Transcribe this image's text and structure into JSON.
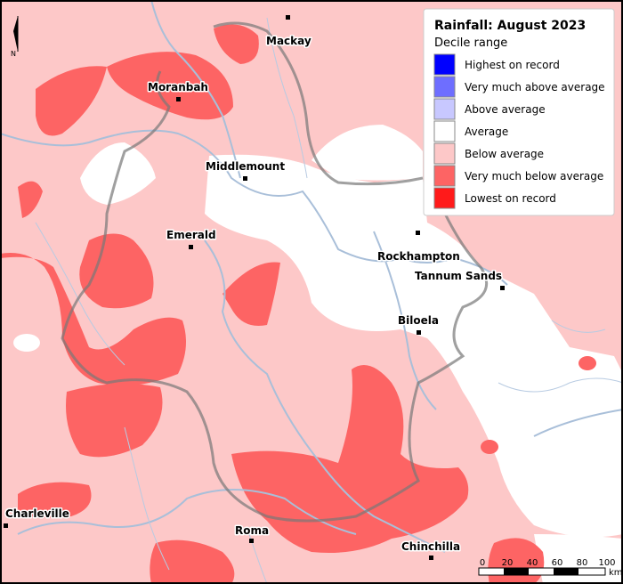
{
  "legend": {
    "title": "Rainfall: August 2023",
    "subtitle": "Decile range",
    "items": [
      {
        "label": "Highest on record",
        "color": "#0000ff"
      },
      {
        "label": "Very much above average",
        "color": "#6e6eff"
      },
      {
        "label": "Above average",
        "color": "#c8c8ff"
      },
      {
        "label": "Average",
        "color": "#ffffff"
      },
      {
        "label": "Below average",
        "color": "#fdc8c8"
      },
      {
        "label": "Very much below average",
        "color": "#fd6464"
      },
      {
        "label": "Lowest on record",
        "color": "#ff1a1a"
      }
    ]
  },
  "places": [
    "Mackay",
    "Moranbah",
    "Middlemount",
    "Emerald",
    "Rockhampton",
    "Tannum Sands",
    "Biloela",
    "Charleville",
    "Roma",
    "Chinchilla"
  ],
  "north": "N",
  "scale": {
    "ticks": [
      "0",
      "20",
      "40",
      "60",
      "80",
      "100"
    ],
    "unit": "km"
  }
}
